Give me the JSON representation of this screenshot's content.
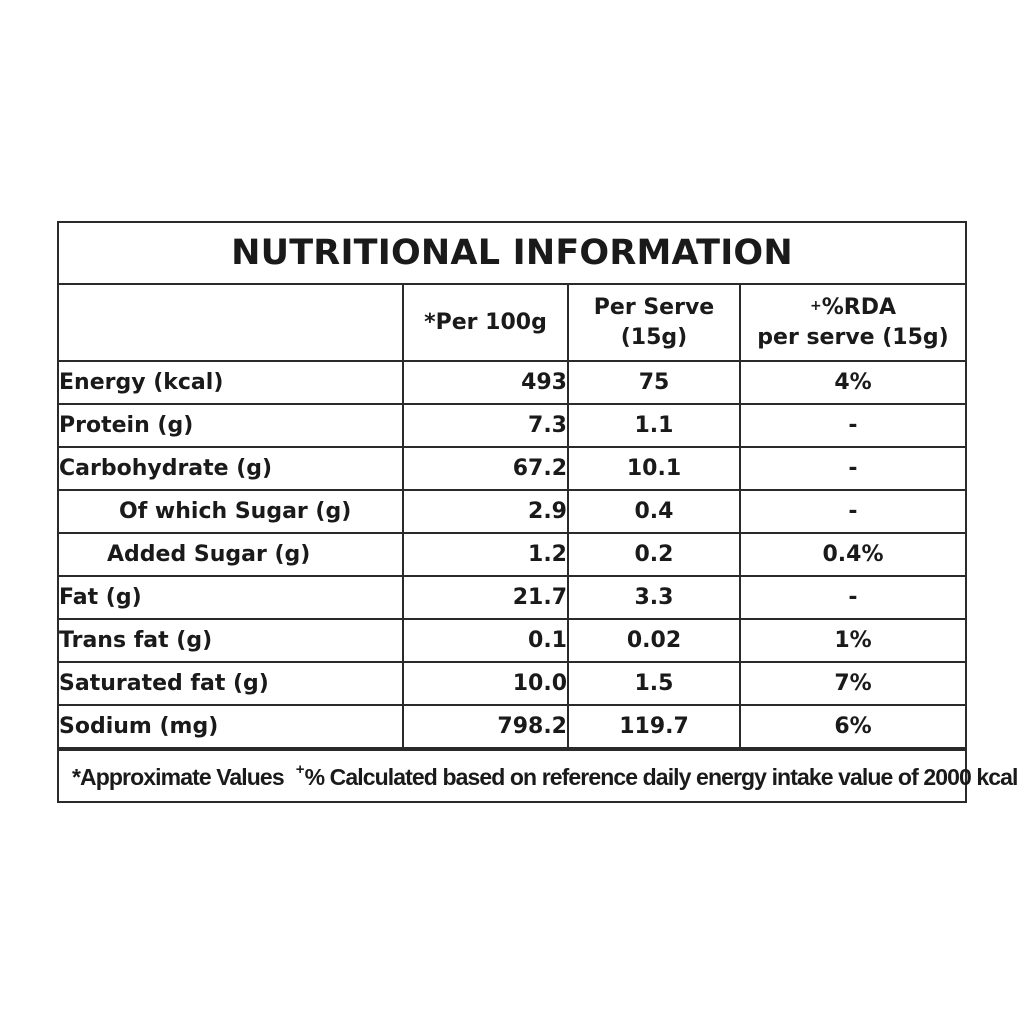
{
  "title": "NUTRITIONAL INFORMATION",
  "columns": {
    "per100": "*Per 100g",
    "perServe": [
      "Per Serve",
      "(15g)"
    ],
    "rdaSup": "+",
    "rda": [
      "%RDA",
      "per serve (15g)"
    ]
  },
  "rows": [
    {
      "name": "Energy (kcal)",
      "per100": "493",
      "perServe": "75",
      "rda": "4%"
    },
    {
      "name": "Protein (g)",
      "per100": "7.3",
      "perServe": "1.1",
      "rda": "-"
    },
    {
      "name": "Carbohydrate (g)",
      "per100": "67.2",
      "perServe": "10.1",
      "rda": "-"
    },
    {
      "name": "Of which Sugar (g)",
      "per100": "2.9",
      "perServe": "0.4",
      "rda": "-"
    },
    {
      "name": "Added Sugar (g)",
      "per100": "1.2",
      "perServe": "0.2",
      "rda": "0.4%"
    },
    {
      "name": "Fat (g)",
      "per100": "21.7",
      "perServe": "3.3",
      "rda": "-"
    },
    {
      "name": "Trans fat (g)",
      "per100": "0.1",
      "perServe": "0.02",
      "rda": "1%"
    },
    {
      "name": "Saturated fat (g)",
      "per100": "10.0",
      "perServe": "1.5",
      "rda": "7%"
    },
    {
      "name": "Sodium (mg)",
      "per100": "798.2",
      "perServe": "119.7",
      "rda": "6%"
    }
  ],
  "footnote": {
    "approx": "*Approximate Values",
    "sup": "+",
    "calc": "% Calculated based on reference daily energy intake value of 2000 kcal"
  }
}
